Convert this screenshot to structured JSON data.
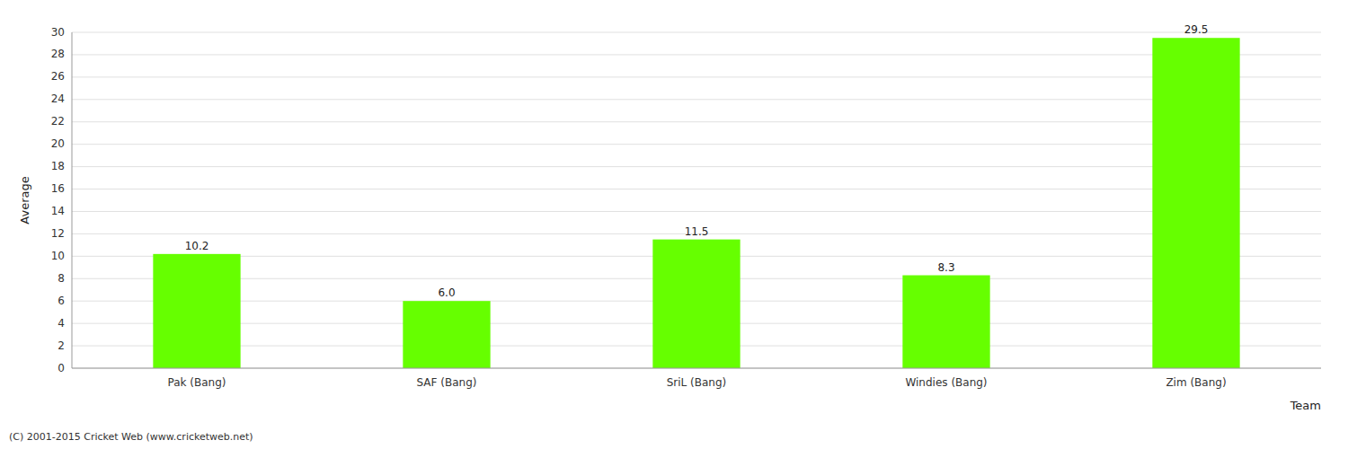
{
  "chart_data": {
    "type": "bar",
    "categories": [
      "Pak (Bang)",
      "SAF (Bang)",
      "SriL (Bang)",
      "Windies (Bang)",
      "Zim (Bang)"
    ],
    "values": [
      10.2,
      6.0,
      11.5,
      8.3,
      29.5
    ],
    "value_labels": [
      "10.2",
      "6.0",
      "11.5",
      "8.3",
      "29.5"
    ],
    "data_labels": true,
    "color": "#66ff00",
    "xlabel": "Team",
    "ylabel": "Average",
    "ylim": [
      0,
      30
    ],
    "yticks": [
      0,
      2,
      4,
      6,
      8,
      10,
      12,
      14,
      16,
      18,
      20,
      22,
      24,
      26,
      28,
      30
    ],
    "grid": true,
    "footnote": "(C) 2001-2015 Cricket Web (www.cricketweb.net)"
  }
}
